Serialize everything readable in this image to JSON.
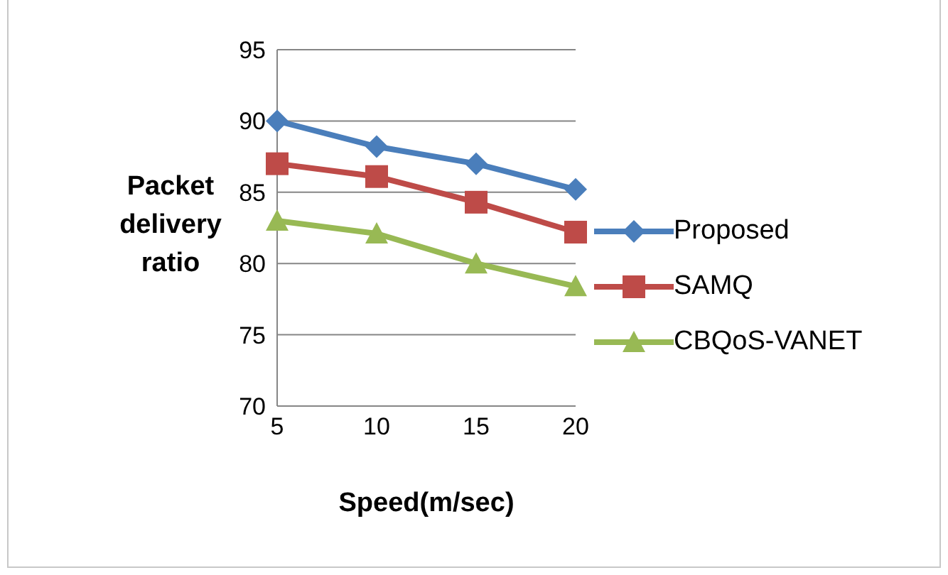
{
  "chart_data": {
    "type": "line",
    "xlabel": "Speed(m/sec)",
    "ylabel": "Packet delivery ratio",
    "categories": [
      "5",
      "10",
      "15",
      "20"
    ],
    "series": [
      {
        "name": "Proposed",
        "color": "#4a7ebb",
        "marker": "diamond",
        "values": [
          90,
          88.2,
          87,
          85.2
        ]
      },
      {
        "name": "SAMQ",
        "color": "#be4b48",
        "marker": "square",
        "values": [
          87,
          86.1,
          84.3,
          82.2
        ]
      },
      {
        "name": "CBQoS-VANET",
        "color": "#98b954",
        "marker": "triangle",
        "values": [
          83,
          82.1,
          80,
          78.4
        ]
      }
    ],
    "ylim": [
      70,
      95
    ],
    "yticks": [
      70,
      75,
      80,
      85,
      90,
      95
    ],
    "grid": "y",
    "legend": "right",
    "line_style": "solid"
  }
}
